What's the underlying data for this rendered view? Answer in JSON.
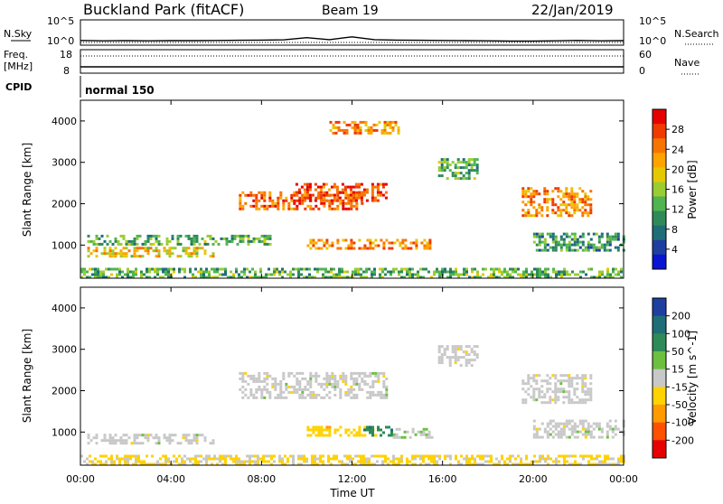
{
  "header": {
    "station": "Buckland Park (fitACF)",
    "beam": "Beam 19",
    "date": "22/Jan/2019"
  },
  "top_panels": {
    "nsky_label": "N.Sky",
    "nsky_ticks": [
      "10^5",
      "10^0"
    ],
    "nsearch_label": "N.Search",
    "nsearch_ticks": [
      "10^5",
      "10^0"
    ],
    "freq_label": "Freq.",
    "freq_unit": "[MHz]",
    "freq_ticks": [
      "18",
      "8"
    ],
    "nave_label": "Nave",
    "nave_ticks": [
      "60",
      "0"
    ],
    "cpid_label": "CPID",
    "cpid_value": "normal 150"
  },
  "x_axis": {
    "label": "Time UT",
    "ticks": [
      "00:00",
      "04:00",
      "08:00",
      "12:00",
      "16:00",
      "20:00",
      "00:00"
    ]
  },
  "colorbars": {
    "power": {
      "label": "Power [dB]",
      "ticks": [
        "28",
        "24",
        "20",
        "16",
        "12",
        "8",
        "4"
      ],
      "colors": [
        "#e60000",
        "#f03a00",
        "#f87400",
        "#ffa300",
        "#e6c800",
        "#9acd32",
        "#50b450",
        "#2e8b57",
        "#1e6e78",
        "#1f3fa0",
        "#0a14d2"
      ]
    },
    "velocity": {
      "label": "Velocity [m s^-1]",
      "ticks": [
        "200",
        "100",
        "50",
        "15",
        "-15",
        "-50",
        "-100",
        "-200"
      ],
      "colors": [
        "#1f3fa0",
        "#1e6e78",
        "#2e8b57",
        "#6cc040",
        "#c8c8c8",
        "#ffd200",
        "#ff9a00",
        "#ff5000",
        "#e60000"
      ]
    }
  },
  "chart_data": [
    {
      "type": "line",
      "title": "N.Sky",
      "x": [
        "00:00",
        "01:00",
        "02:00",
        "03:00",
        "04:00",
        "05:00",
        "06:00",
        "07:00",
        "08:00",
        "09:00",
        "10:00",
        "11:00",
        "12:00",
        "13:00",
        "14:00",
        "15:00",
        "16:00",
        "17:00",
        "18:00",
        "19:00",
        "20:00",
        "21:00",
        "22:00",
        "23:00",
        "24:00"
      ],
      "series": [
        {
          "values_log10": [
            0.5,
            0.4,
            0.45,
            0.4,
            0.45,
            0.45,
            0.5,
            0.55,
            0.6,
            0.65,
            1.2,
            0.7,
            1.4,
            0.7,
            0.6,
            0.55,
            0.5,
            0.45,
            0.4,
            0.35,
            0.35,
            0.4,
            0.5,
            0.4,
            0.45
          ]
        }
      ],
      "ylim_log10": [
        0,
        5
      ]
    },
    {
      "type": "heatmap",
      "title": "",
      "xlabel": "Time UT",
      "ylabel": "Slant Range [km]",
      "x_range_hours": [
        0,
        24
      ],
      "ylim": [
        200,
        4500
      ],
      "yticks": [
        1000,
        2000,
        3000,
        4000
      ],
      "value": "Power [dB]",
      "clim": [
        0,
        30
      ],
      "echo_regions": [
        {
          "t0": 0.3,
          "t1": 6.0,
          "r0": 760,
          "r1": 960,
          "power": 18
        },
        {
          "t0": 0.3,
          "t1": 8.5,
          "r0": 1000,
          "r1": 1250,
          "power": 12
        },
        {
          "t0": 7.0,
          "t1": 12.5,
          "r0": 1850,
          "r1": 2300,
          "power": 24
        },
        {
          "t0": 9.5,
          "t1": 13.5,
          "r0": 2050,
          "r1": 2500,
          "power": 26
        },
        {
          "t0": 10.0,
          "t1": 15.5,
          "r0": 900,
          "r1": 1150,
          "power": 22
        },
        {
          "t0": 11.0,
          "t1": 14.0,
          "r0": 3700,
          "r1": 4000,
          "power": 22
        },
        {
          "t0": 15.8,
          "t1": 17.5,
          "r0": 2600,
          "r1": 3100,
          "power": 12
        },
        {
          "t0": 19.5,
          "t1": 22.5,
          "r0": 1700,
          "r1": 2400,
          "power": 22
        },
        {
          "t0": 20.0,
          "t1": 24.0,
          "r0": 900,
          "r1": 1300,
          "power": 10
        },
        {
          "t0": 0.0,
          "t1": 24.0,
          "r0": 200,
          "r1": 450,
          "power": 12
        }
      ]
    },
    {
      "type": "heatmap",
      "title": "",
      "xlabel": "Time UT",
      "ylabel": "Slant Range [km]",
      "x_range_hours": [
        0,
        24
      ],
      "ylim": [
        200,
        4500
      ],
      "yticks": [
        1000,
        2000,
        3000,
        4000
      ],
      "value": "Velocity [m s^-1]",
      "clim": [
        -250,
        250
      ],
      "echo_regions": [
        {
          "t0": 0.3,
          "t1": 6.0,
          "r0": 760,
          "r1": 960,
          "velocity": 0
        },
        {
          "t0": 7.0,
          "t1": 13.5,
          "r0": 1850,
          "r1": 2450,
          "velocity": 0
        },
        {
          "t0": 10.0,
          "t1": 13.0,
          "r0": 950,
          "r1": 1150,
          "velocity": -60
        },
        {
          "t0": 12.5,
          "t1": 13.8,
          "r0": 950,
          "r1": 1150,
          "velocity": 120
        },
        {
          "t0": 13.8,
          "t1": 15.5,
          "r0": 900,
          "r1": 1100,
          "velocity": 20
        },
        {
          "t0": 15.8,
          "t1": 17.5,
          "r0": 2600,
          "r1": 3100,
          "velocity": 0
        },
        {
          "t0": 19.5,
          "t1": 22.5,
          "r0": 1700,
          "r1": 2400,
          "velocity": 0
        },
        {
          "t0": 20.0,
          "t1": 24.0,
          "r0": 900,
          "r1": 1300,
          "velocity": 0
        },
        {
          "t0": 0.0,
          "t1": 24.0,
          "r0": 200,
          "r1": 450,
          "velocity": -40
        }
      ]
    }
  ]
}
